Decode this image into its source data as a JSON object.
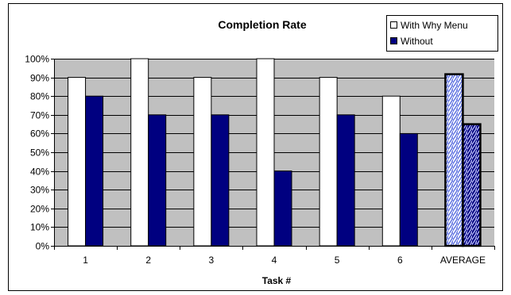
{
  "chart_data": {
    "type": "bar",
    "title": "Completion Rate",
    "xlabel": "Task #",
    "ylabel": "",
    "categories": [
      "1",
      "2",
      "3",
      "4",
      "5",
      "6",
      "AVERAGE"
    ],
    "series": [
      {
        "name": "With Why Menu",
        "color": "#ffffff",
        "values": [
          0.9,
          1.0,
          0.9,
          1.0,
          0.9,
          0.8,
          0.917
        ]
      },
      {
        "name": "Without",
        "color": "#000080",
        "values": [
          0.8,
          0.7,
          0.7,
          0.4,
          0.7,
          0.6,
          0.65
        ]
      }
    ],
    "highlighted_category": "AVERAGE",
    "ylim": [
      0,
      1
    ],
    "yticks": [
      "0%",
      "10%",
      "20%",
      "30%",
      "40%",
      "50%",
      "60%",
      "70%",
      "80%",
      "90%",
      "100%"
    ],
    "grid": true,
    "legend_position": "top-right",
    "plot_background": "#c0c0c0"
  }
}
